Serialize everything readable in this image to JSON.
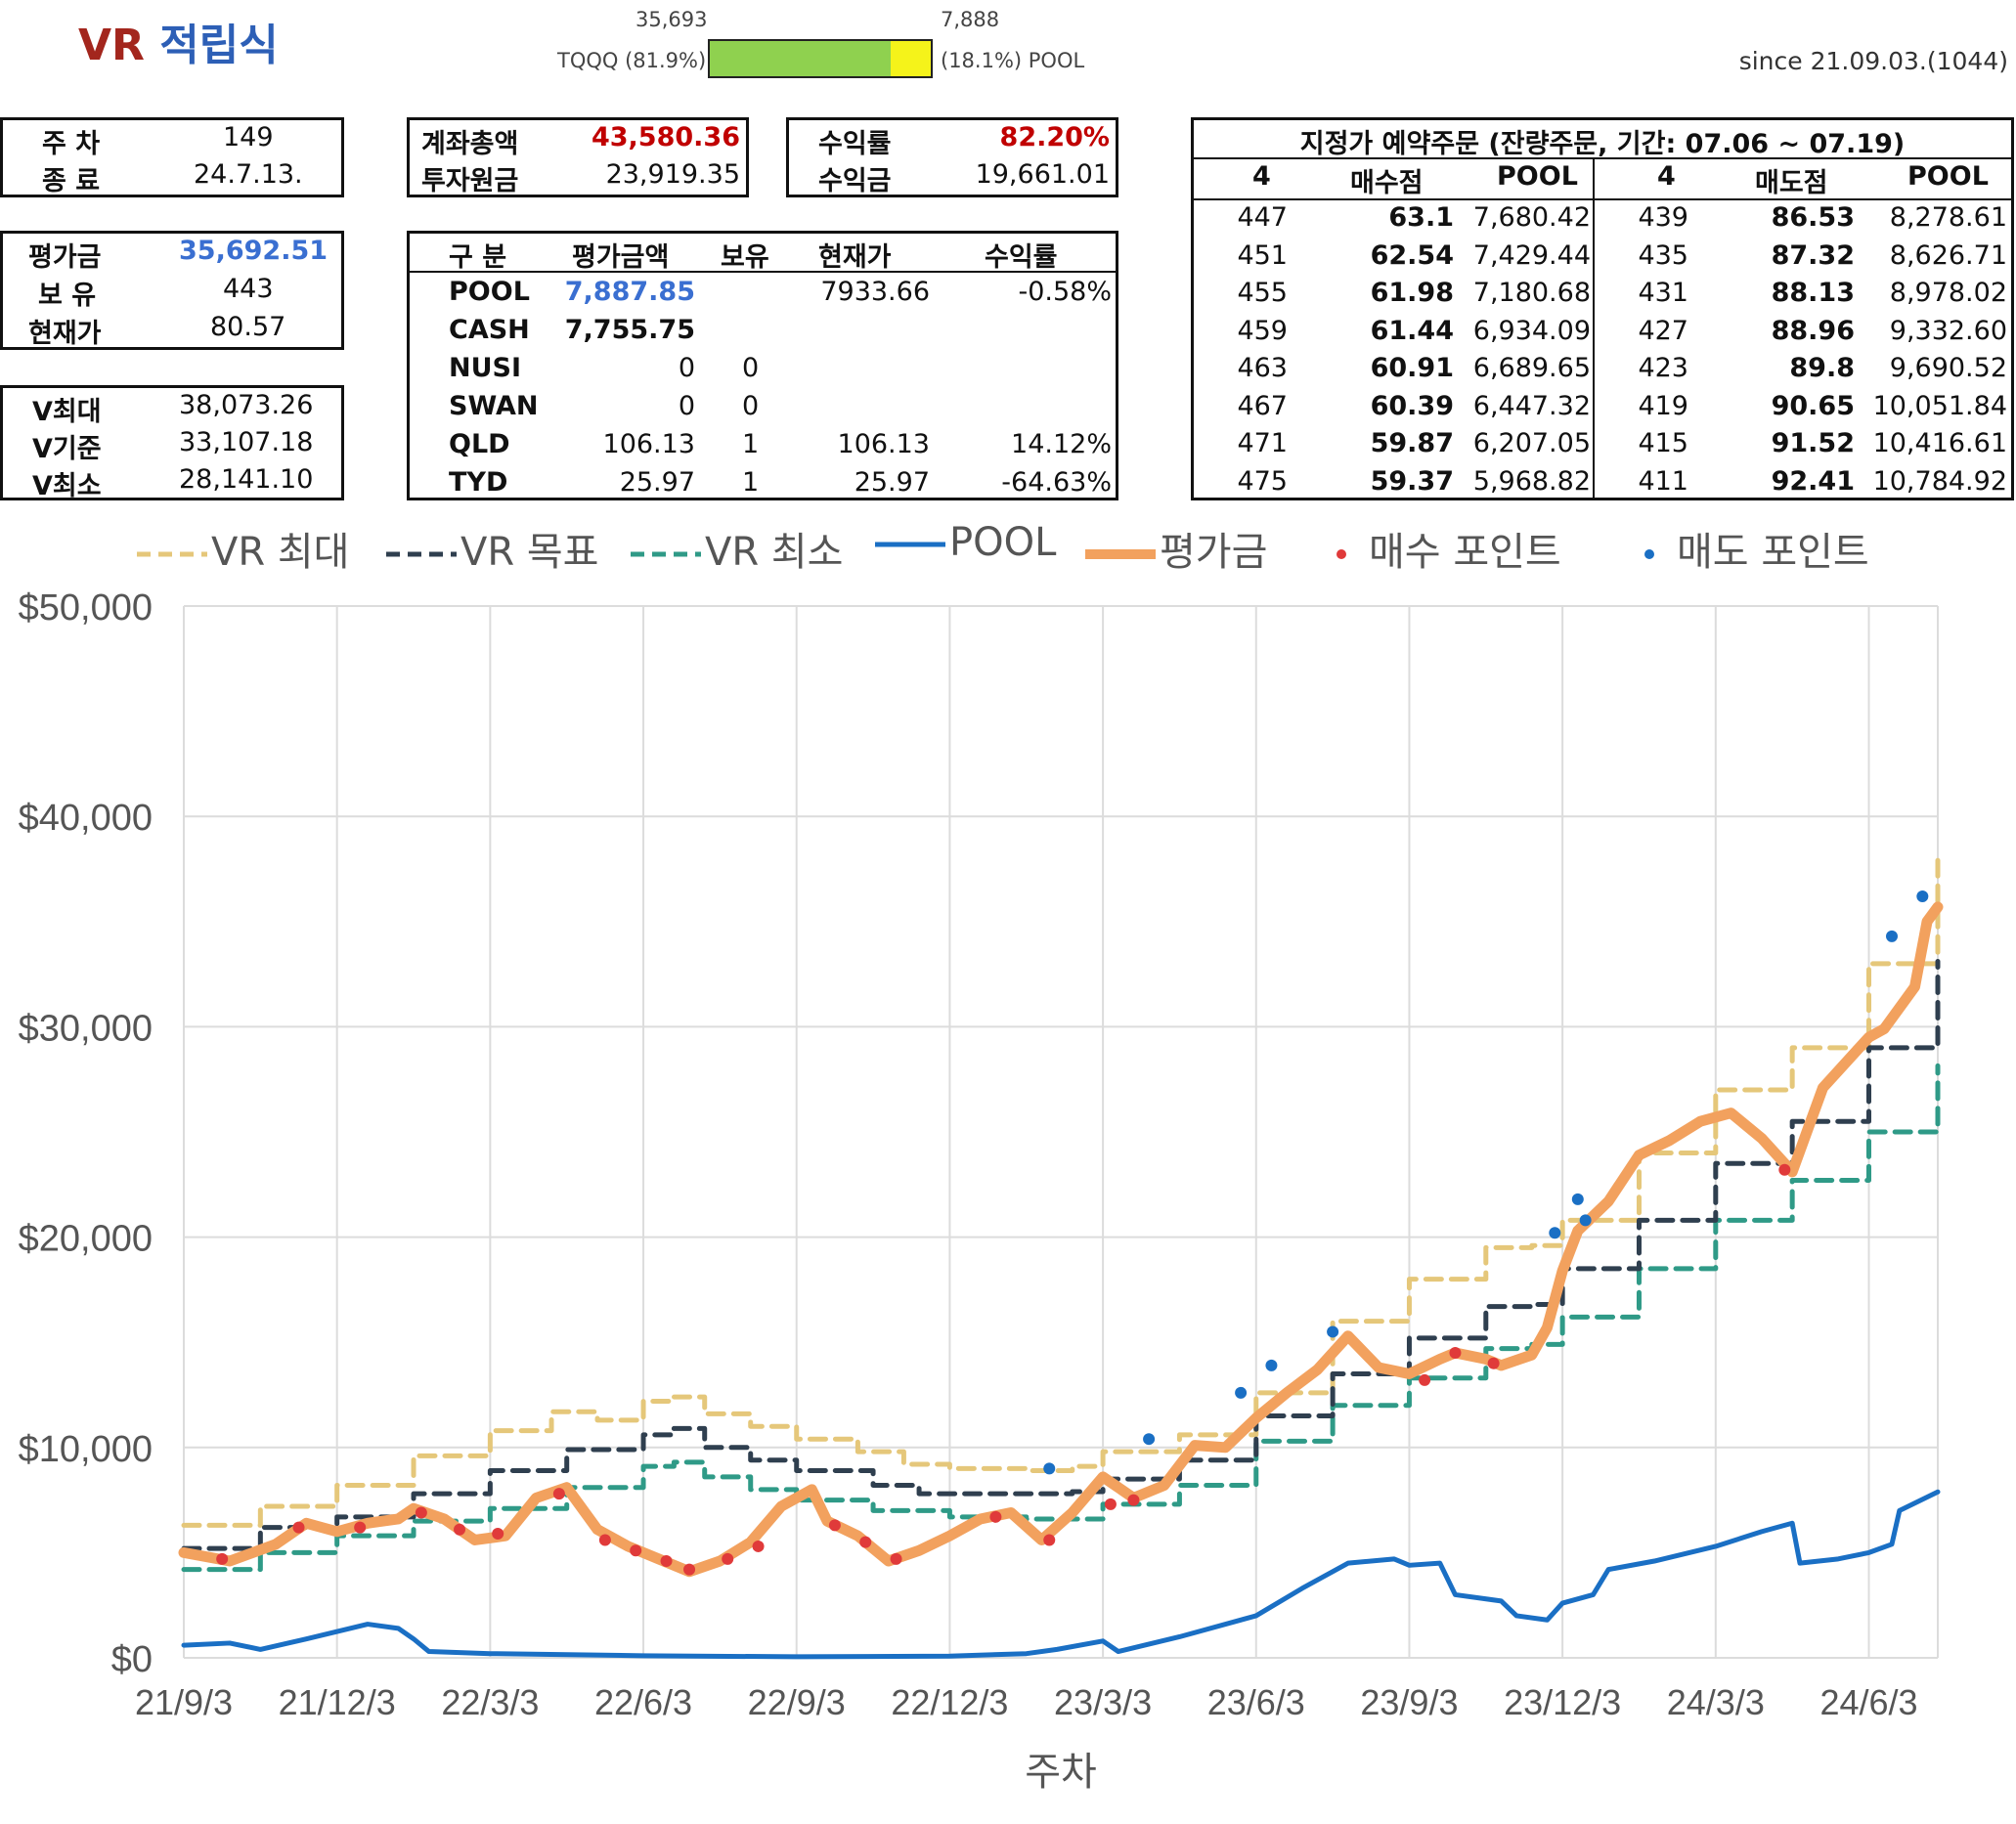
{
  "header": {
    "title_vr": "VR",
    "title_kr": "적립식",
    "tqqq_value": "35,693",
    "pool_value": "7,888",
    "tqqq_label": "TQQQ (81.9%)",
    "pool_label": "(18.1%) POOL",
    "tqqq_fraction": 0.819,
    "since": "since 21.09.03.(1044)",
    "colors": {
      "tqqq": "#8fd14f",
      "pool": "#f5f31a"
    }
  },
  "week_box": {
    "week_label": "주 차",
    "week_value": "149",
    "end_label": "종 료",
    "end_value": "24.7.13."
  },
  "account_box": {
    "total_label": "계좌총액",
    "total_value": "43,580.36",
    "principal_label": "투자원금",
    "principal_value": "23,919.35"
  },
  "return_box": {
    "rate_label": "수익률",
    "rate_value": "82.20%",
    "profit_label": "수익금",
    "profit_value": "19,661.01"
  },
  "eval_box": {
    "eval_label": "평가금",
    "eval_value": "35,692.51",
    "hold_label": "보 유",
    "hold_value": "443",
    "price_label": "현재가",
    "price_value": "80.57"
  },
  "v_box": {
    "vmax_label": "V최대",
    "vmax_value": "38,073.26",
    "vbase_label": "V기준",
    "vbase_value": "33,107.18",
    "vmin_label": "V최소",
    "vmin_value": "28,141.10"
  },
  "holdings": {
    "headers": [
      "구 분",
      "평가금액",
      "보유",
      "현재가",
      "수익률"
    ],
    "rows": [
      {
        "name": "POOL",
        "value": "7,887.85",
        "hold": "",
        "price": "7933.66",
        "rate": "-0.58%"
      },
      {
        "name": "CASH",
        "value": "7,755.75",
        "hold": "",
        "price": "",
        "rate": ""
      },
      {
        "name": "NUSI",
        "value": "0",
        "hold": "0",
        "price": "",
        "rate": ""
      },
      {
        "name": "SWAN",
        "value": "0",
        "hold": "0",
        "price": "",
        "rate": ""
      },
      {
        "name": "QLD",
        "value": "106.13",
        "hold": "1",
        "price": "106.13",
        "rate": "14.12%"
      },
      {
        "name": "TYD",
        "value": "25.97",
        "hold": "1",
        "price": "25.97",
        "rate": "-64.63%"
      }
    ]
  },
  "orders": {
    "title": "지정가 예약주문 (잔량주문, 기간: 07.06 ~ 07.19)",
    "headers": [
      "4",
      "매수점",
      "POOL",
      "4",
      "매도점",
      "POOL"
    ],
    "rows": [
      [
        "447",
        "63.1",
        "7,680.42",
        "439",
        "86.53",
        "8,278.61"
      ],
      [
        "451",
        "62.54",
        "7,429.44",
        "435",
        "87.32",
        "8,626.71"
      ],
      [
        "455",
        "61.98",
        "7,180.68",
        "431",
        "88.13",
        "8,978.02"
      ],
      [
        "459",
        "61.44",
        "6,934.09",
        "427",
        "88.96",
        "9,332.60"
      ],
      [
        "463",
        "60.91",
        "6,689.65",
        "423",
        "89.8",
        "9,690.52"
      ],
      [
        "467",
        "60.39",
        "6,447.32",
        "419",
        "90.65",
        "10,051.84"
      ],
      [
        "471",
        "59.87",
        "6,207.05",
        "415",
        "91.52",
        "10,416.61"
      ],
      [
        "475",
        "59.37",
        "5,968.82",
        "411",
        "92.41",
        "10,784.92"
      ]
    ]
  },
  "chart_data": {
    "type": "line",
    "xlabel": "주차",
    "ylabel": "",
    "ylim": [
      0,
      50000
    ],
    "yticks": [
      "$0",
      "$10,000",
      "$20,000",
      "$30,000",
      "$40,000",
      "$50,000"
    ],
    "xticks": [
      "21/9/3",
      "21/12/3",
      "22/3/3",
      "22/6/3",
      "22/9/3",
      "22/12/3",
      "23/3/3",
      "23/6/3",
      "23/9/3",
      "23/12/3",
      "24/3/3",
      "24/6/3"
    ],
    "x_last": 11.45,
    "grid": true,
    "legend": "top",
    "colors": {
      "vmax": "#e5c77a",
      "vtarget": "#2f3f4f",
      "vmin": "#2f9a87",
      "pool": "#1a6fc4",
      "eval": "#f2a15e",
      "buy": "#e03a3a",
      "sell": "#1a6fc4"
    },
    "series": [
      {
        "key": "vmax",
        "name": "VR 최대",
        "style": "dashed",
        "points": [
          [
            0,
            6300
          ],
          [
            0.5,
            7200
          ],
          [
            1,
            8200
          ],
          [
            1.5,
            9600
          ],
          [
            2,
            10800
          ],
          [
            2.4,
            11700
          ],
          [
            2.7,
            11300
          ],
          [
            3,
            12200
          ],
          [
            3.2,
            12400
          ],
          [
            3.4,
            11600
          ],
          [
            3.7,
            11000
          ],
          [
            4,
            10400
          ],
          [
            4.4,
            9800
          ],
          [
            4.7,
            9200
          ],
          [
            5,
            9000
          ],
          [
            5.5,
            8900
          ],
          [
            5.8,
            9100
          ],
          [
            6,
            9800
          ],
          [
            6.5,
            10600
          ],
          [
            7,
            12600
          ],
          [
            7.5,
            16000
          ],
          [
            8,
            18000
          ],
          [
            8.5,
            19500
          ],
          [
            8.8,
            19600
          ],
          [
            9,
            20800
          ],
          [
            9.5,
            24000
          ],
          [
            10,
            27000
          ],
          [
            10.5,
            29000
          ],
          [
            11,
            33000
          ],
          [
            11.45,
            38073
          ]
        ]
      },
      {
        "key": "vtarget",
        "name": "VR 목표",
        "style": "dashed",
        "points": [
          [
            0,
            5200
          ],
          [
            0.5,
            6200
          ],
          [
            1,
            6700
          ],
          [
            1.5,
            7800
          ],
          [
            2,
            8900
          ],
          [
            2.5,
            9900
          ],
          [
            3,
            10600
          ],
          [
            3.2,
            10900
          ],
          [
            3.4,
            10000
          ],
          [
            3.7,
            9400
          ],
          [
            4,
            8900
          ],
          [
            4.5,
            8200
          ],
          [
            4.8,
            7800
          ],
          [
            5.3,
            7800
          ],
          [
            5.8,
            7900
          ],
          [
            6,
            8500
          ],
          [
            6.5,
            9400
          ],
          [
            7,
            11500
          ],
          [
            7.5,
            13500
          ],
          [
            8,
            15200
          ],
          [
            8.5,
            16700
          ],
          [
            8.8,
            16800
          ],
          [
            9,
            18500
          ],
          [
            9.5,
            20800
          ],
          [
            10,
            23500
          ],
          [
            10.5,
            25500
          ],
          [
            11,
            29000
          ],
          [
            11.45,
            33107
          ]
        ]
      },
      {
        "key": "vmin",
        "name": "VR 최소",
        "style": "dashed",
        "points": [
          [
            0,
            4200
          ],
          [
            0.5,
            5000
          ],
          [
            1,
            5800
          ],
          [
            1.5,
            6500
          ],
          [
            2,
            7100
          ],
          [
            2.5,
            8100
          ],
          [
            3,
            9100
          ],
          [
            3.2,
            9300
          ],
          [
            3.4,
            8600
          ],
          [
            3.7,
            8000
          ],
          [
            4,
            7500
          ],
          [
            4.5,
            7000
          ],
          [
            5,
            6700
          ],
          [
            5.5,
            6600
          ],
          [
            6,
            7300
          ],
          [
            6.5,
            8200
          ],
          [
            7,
            10300
          ],
          [
            7.5,
            12000
          ],
          [
            8,
            13300
          ],
          [
            8.5,
            14700
          ],
          [
            8.8,
            14900
          ],
          [
            9,
            16200
          ],
          [
            9.5,
            18500
          ],
          [
            10,
            20800
          ],
          [
            10.5,
            22700
          ],
          [
            11,
            25000
          ],
          [
            11.45,
            28141
          ]
        ]
      },
      {
        "key": "pool",
        "name": "POOL",
        "style": "solid",
        "points": [
          [
            0,
            600
          ],
          [
            0.3,
            700
          ],
          [
            0.5,
            400
          ],
          [
            0.8,
            900
          ],
          [
            1.2,
            1600
          ],
          [
            1.4,
            1400
          ],
          [
            1.5,
            900
          ],
          [
            1.6,
            300
          ],
          [
            2,
            200
          ],
          [
            3,
            100
          ],
          [
            4,
            50
          ],
          [
            5,
            80
          ],
          [
            5.5,
            200
          ],
          [
            5.7,
            400
          ],
          [
            6,
            800
          ],
          [
            6.1,
            300
          ],
          [
            6.5,
            1000
          ],
          [
            7,
            2000
          ],
          [
            7.3,
            3300
          ],
          [
            7.6,
            4500
          ],
          [
            7.9,
            4700
          ],
          [
            8,
            4400
          ],
          [
            8.2,
            4500
          ],
          [
            8.3,
            3000
          ],
          [
            8.6,
            2700
          ],
          [
            8.7,
            2000
          ],
          [
            8.9,
            1800
          ],
          [
            9,
            2600
          ],
          [
            9.2,
            3000
          ],
          [
            9.3,
            4200
          ],
          [
            9.6,
            4600
          ],
          [
            10,
            5300
          ],
          [
            10.3,
            6000
          ],
          [
            10.5,
            6400
          ],
          [
            10.55,
            4500
          ],
          [
            10.8,
            4700
          ],
          [
            11,
            5000
          ],
          [
            11.15,
            5400
          ],
          [
            11.2,
            7000
          ],
          [
            11.45,
            7888
          ]
        ]
      },
      {
        "key": "eval",
        "name": "평가금",
        "style": "solid",
        "points": [
          [
            0,
            5000
          ],
          [
            0.3,
            4600
          ],
          [
            0.6,
            5400
          ],
          [
            0.8,
            6400
          ],
          [
            1,
            6000
          ],
          [
            1.2,
            6400
          ],
          [
            1.4,
            6600
          ],
          [
            1.5,
            7100
          ],
          [
            1.7,
            6600
          ],
          [
            1.9,
            5600
          ],
          [
            2.1,
            5800
          ],
          [
            2.3,
            7600
          ],
          [
            2.5,
            8100
          ],
          [
            2.7,
            6100
          ],
          [
            2.9,
            5300
          ],
          [
            3.1,
            4700
          ],
          [
            3.3,
            4100
          ],
          [
            3.5,
            4600
          ],
          [
            3.7,
            5500
          ],
          [
            3.9,
            7200
          ],
          [
            4.1,
            8000
          ],
          [
            4.2,
            6500
          ],
          [
            4.4,
            5800
          ],
          [
            4.6,
            4600
          ],
          [
            4.8,
            5100
          ],
          [
            5,
            5800
          ],
          [
            5.2,
            6600
          ],
          [
            5.4,
            6900
          ],
          [
            5.6,
            5600
          ],
          [
            5.8,
            6900
          ],
          [
            6,
            8600
          ],
          [
            6.2,
            7600
          ],
          [
            6.4,
            8200
          ],
          [
            6.6,
            10100
          ],
          [
            6.8,
            10000
          ],
          [
            7,
            11400
          ],
          [
            7.2,
            12600
          ],
          [
            7.4,
            13700
          ],
          [
            7.6,
            15300
          ],
          [
            7.8,
            13800
          ],
          [
            8,
            13500
          ],
          [
            8.2,
            14200
          ],
          [
            8.3,
            14500
          ],
          [
            8.5,
            14200
          ],
          [
            8.6,
            13900
          ],
          [
            8.8,
            14400
          ],
          [
            8.9,
            15700
          ],
          [
            9,
            18400
          ],
          [
            9.1,
            20300
          ],
          [
            9.3,
            21700
          ],
          [
            9.5,
            23900
          ],
          [
            9.7,
            24600
          ],
          [
            9.9,
            25500
          ],
          [
            10.1,
            25900
          ],
          [
            10.3,
            24700
          ],
          [
            10.5,
            23100
          ],
          [
            10.7,
            27100
          ],
          [
            10.9,
            28700
          ],
          [
            11,
            29500
          ],
          [
            11.1,
            29900
          ],
          [
            11.3,
            31900
          ],
          [
            11.38,
            35000
          ],
          [
            11.45,
            35693
          ]
        ]
      }
    ],
    "buy_points": [
      [
        0.25,
        4700
      ],
      [
        0.75,
        6200
      ],
      [
        1.15,
        6200
      ],
      [
        1.55,
        6900
      ],
      [
        1.8,
        6100
      ],
      [
        2.05,
        5900
      ],
      [
        2.45,
        7800
      ],
      [
        2.75,
        5600
      ],
      [
        2.95,
        5100
      ],
      [
        3.15,
        4600
      ],
      [
        3.3,
        4200
      ],
      [
        3.55,
        4700
      ],
      [
        3.75,
        5300
      ],
      [
        4.25,
        6300
      ],
      [
        4.45,
        5500
      ],
      [
        4.65,
        4700
      ],
      [
        5.3,
        6700
      ],
      [
        5.65,
        5600
      ],
      [
        6.05,
        7300
      ],
      [
        6.2,
        7500
      ],
      [
        8.1,
        13200
      ],
      [
        8.3,
        14500
      ],
      [
        8.55,
        14000
      ],
      [
        10.45,
        23200
      ]
    ],
    "sell_points": [
      [
        5.65,
        9000
      ],
      [
        6.3,
        10400
      ],
      [
        6.9,
        12600
      ],
      [
        7.1,
        13900
      ],
      [
        7.5,
        15500
      ],
      [
        8.95,
        20200
      ],
      [
        9.1,
        21800
      ],
      [
        9.15,
        20800
      ],
      [
        11.15,
        34300
      ],
      [
        11.35,
        36200
      ]
    ]
  }
}
